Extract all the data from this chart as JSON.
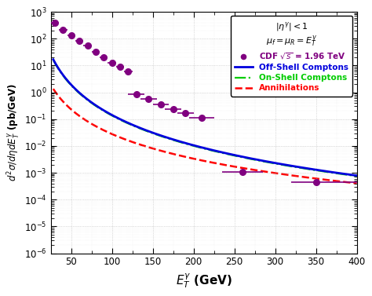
{
  "title": "",
  "xlabel": "$E_T^{\\gamma}$ (GeV)",
  "ylabel": "$d^2\\sigma/d\\eta dE_T^{\\gamma}$ (pb/GeV)",
  "xlim": [
    25,
    400
  ],
  "ylim": [
    1e-06,
    1000
  ],
  "legend_text1": "$|\\eta^{\\gamma}|<1$",
  "legend_text2": "$\\mu_f=\\mu_R=E_T^{\\gamma}$",
  "legend_cdf": "CDF $\\sqrt{s}$ = 1.96 TeV",
  "legend_offshell": "Off-Shell Comptons",
  "legend_onshell": "On-Shell Comptons",
  "legend_annihilation": "Annihilations",
  "data_x": [
    30,
    40,
    50,
    60,
    70,
    80,
    90,
    100,
    110,
    120,
    130,
    145,
    160,
    175,
    190,
    210,
    260,
    350
  ],
  "data_y": [
    400,
    220,
    130,
    85,
    55,
    32,
    20,
    13,
    9.0,
    6.0,
    0.85,
    0.55,
    0.35,
    0.23,
    0.165,
    0.11,
    0.0011,
    0.00046
  ],
  "data_xerr_low": [
    5,
    5,
    5,
    5,
    5,
    5,
    5,
    5,
    5,
    5,
    10,
    10,
    10,
    10,
    10,
    15,
    25,
    30
  ],
  "data_xerr_high": [
    5,
    5,
    5,
    5,
    5,
    5,
    5,
    5,
    5,
    5,
    10,
    10,
    10,
    10,
    10,
    15,
    25,
    50
  ],
  "data_color": "#800080",
  "line_blue_color": "#0000dd",
  "line_green_color": "#00cc00",
  "line_red_color": "#ff0000",
  "background_color": "#ffffff",
  "blue_A": 4500000.0,
  "blue_n": 3.75,
  "green_A": 4300000.0,
  "green_n": 3.75,
  "red_A": 35000.0,
  "red_n": 3.05
}
